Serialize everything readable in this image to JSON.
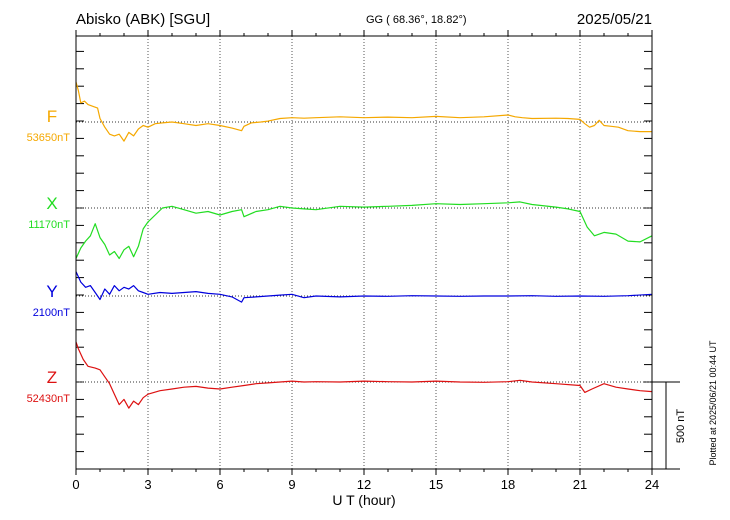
{
  "header": {
    "station": "Abisko (ABK)  [SGU]",
    "coords": "GG ( 68.36°,  18.82°)",
    "date": "2025/05/21"
  },
  "plotted_note": "Plotted at 2025/06/21 00:44 UT",
  "scale_label": "500 nT",
  "chart_data": {
    "type": "line",
    "xlabel": "U T (hour)",
    "xlim": [
      0,
      24
    ],
    "xticks": [
      "0",
      "3",
      "6",
      "9",
      "12",
      "15",
      "18",
      "21",
      "24"
    ],
    "grid": true,
    "scale_nT": 500,
    "series": [
      {
        "name": "F",
        "baseline": "53650nT",
        "color": "#f5a800",
        "baseline_nT": 53650,
        "x": [
          0,
          0.1,
          0.2,
          0.35,
          0.5,
          0.7,
          0.9,
          1.0,
          1.2,
          1.4,
          1.6,
          1.8,
          2.0,
          2.2,
          2.4,
          2.6,
          2.8,
          3.0,
          3.3,
          3.6,
          4.0,
          4.5,
          5.0,
          5.5,
          6.0,
          6.5,
          6.9,
          7.0,
          7.3,
          7.7,
          8.0,
          8.5,
          9.0,
          9.5,
          10,
          11,
          12,
          13,
          14,
          15,
          16,
          17,
          18,
          18.3,
          18.6,
          19,
          20,
          20.5,
          21,
          21.2,
          21.4,
          21.6,
          21.8,
          22,
          22.3,
          22.6,
          23,
          23.5,
          24
        ],
        "y": [
          53880,
          53830,
          53760,
          53770,
          53750,
          53740,
          53730,
          53670,
          53620,
          53580,
          53570,
          53580,
          53540,
          53590,
          53570,
          53610,
          53630,
          53620,
          53640,
          53645,
          53650,
          53640,
          53630,
          53640,
          53630,
          53615,
          53600,
          53625,
          53645,
          53650,
          53655,
          53670,
          53675,
          53672,
          53675,
          53680,
          53675,
          53678,
          53675,
          53682,
          53675,
          53680,
          53690,
          53680,
          53675,
          53670,
          53672,
          53670,
          53665,
          53640,
          53620,
          53630,
          53660,
          53630,
          53625,
          53620,
          53600,
          53595,
          53595
        ]
      },
      {
        "name": "X",
        "baseline": "11170nT",
        "color": "#22dd22",
        "baseline_nT": 11170,
        "x": [
          0,
          0.2,
          0.4,
          0.6,
          0.8,
          1.0,
          1.2,
          1.4,
          1.6,
          1.8,
          2.0,
          2.2,
          2.4,
          2.6,
          2.8,
          3.0,
          3.3,
          3.6,
          4.0,
          4.5,
          5.0,
          5.5,
          6.0,
          6.5,
          6.9,
          7.0,
          7.5,
          8.0,
          8.5,
          9.0,
          9.5,
          10,
          11,
          12,
          13,
          14,
          15,
          16,
          17,
          18,
          18.5,
          19,
          20,
          20.5,
          21,
          21.3,
          21.6,
          22,
          22.5,
          23,
          23.5,
          24
        ],
        "y": [
          10880,
          10940,
          10980,
          11010,
          11080,
          11000,
          10960,
          10900,
          10920,
          10880,
          10930,
          10950,
          10890,
          10950,
          11050,
          11090,
          11130,
          11170,
          11180,
          11160,
          11140,
          11150,
          11130,
          11150,
          11160,
          11120,
          11150,
          11160,
          11180,
          11170,
          11165,
          11160,
          11180,
          11175,
          11180,
          11185,
          11195,
          11190,
          11195,
          11200,
          11205,
          11190,
          11175,
          11165,
          11150,
          11060,
          11010,
          11030,
          11020,
          10980,
          10975,
          11010
        ]
      },
      {
        "name": "Y",
        "baseline": "2100nT",
        "color": "#0000dd",
        "baseline_nT": 2100,
        "x": [
          0,
          0.2,
          0.4,
          0.6,
          0.8,
          1.0,
          1.2,
          1.4,
          1.6,
          1.8,
          2.0,
          2.2,
          2.4,
          2.6,
          2.8,
          3.0,
          3.5,
          4.0,
          4.5,
          5.0,
          5.5,
          6.0,
          6.5,
          6.9,
          7.0,
          7.5,
          8.0,
          8.5,
          9.0,
          9.5,
          10,
          11,
          12,
          13,
          14,
          15,
          16,
          17,
          18,
          19,
          20,
          21,
          22,
          23,
          24
        ],
        "y": [
          2240,
          2180,
          2150,
          2160,
          2120,
          2080,
          2140,
          2110,
          2160,
          2130,
          2150,
          2140,
          2160,
          2130,
          2120,
          2110,
          2120,
          2115,
          2120,
          2125,
          2115,
          2110,
          2095,
          2065,
          2090,
          2095,
          2100,
          2105,
          2110,
          2090,
          2100,
          2095,
          2100,
          2098,
          2102,
          2100,
          2098,
          2100,
          2100,
          2102,
          2098,
          2100,
          2098,
          2102,
          2110
        ]
      },
      {
        "name": "Z",
        "baseline": "52430nT",
        "color": "#dd1111",
        "baseline_nT": 52430,
        "x": [
          0,
          0.1,
          0.3,
          0.5,
          0.8,
          1.0,
          1.2,
          1.4,
          1.6,
          1.8,
          2.0,
          2.2,
          2.4,
          2.6,
          2.8,
          3.0,
          3.5,
          4.0,
          4.5,
          5.0,
          5.5,
          6.0,
          6.5,
          7.0,
          7.5,
          8.0,
          8.5,
          9.0,
          9.5,
          10,
          11,
          12,
          13,
          14,
          15,
          16,
          17,
          18,
          18.5,
          19,
          20,
          21,
          21.2,
          21.5,
          22,
          22.5,
          23,
          23.5,
          24
        ],
        "y": [
          52660,
          52620,
          52560,
          52520,
          52510,
          52500,
          52460,
          52420,
          52360,
          52300,
          52330,
          52280,
          52320,
          52300,
          52340,
          52360,
          52380,
          52390,
          52400,
          52405,
          52395,
          52390,
          52400,
          52410,
          52420,
          52425,
          52430,
          52435,
          52430,
          52432,
          52430,
          52435,
          52432,
          52430,
          52435,
          52430,
          52428,
          52432,
          52440,
          52430,
          52420,
          52410,
          52370,
          52390,
          52420,
          52400,
          52390,
          52380,
          52375
        ]
      }
    ]
  }
}
